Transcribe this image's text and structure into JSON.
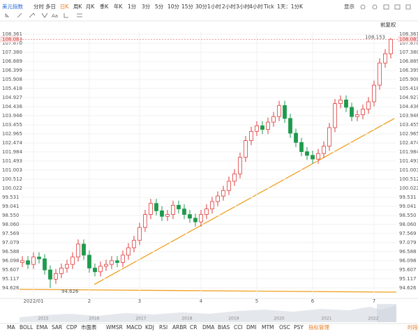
{
  "toolbar": {
    "symbol": "美元指数",
    "periods": [
      "分时",
      "多日",
      "日K",
      "周K",
      "月K",
      "季K",
      "年K",
      "1分",
      "3分",
      "5分",
      "10分",
      "15分",
      "30分",
      "1小时",
      "2小时",
      "3小时",
      "4小时",
      "Tick",
      "1天：1分K"
    ],
    "display": "显示",
    "adjust": "前复权"
  },
  "indicators": [
    "MA",
    "BOLL",
    "EMA",
    "SAR",
    "CDP",
    "市面表",
    "WMSR",
    "MACD",
    "KDJ",
    "RSI",
    "ARBR",
    "CR",
    "DMA",
    "BIAS",
    "CCI",
    "DMI",
    "MTM",
    "OSC",
    "PSY",
    "指标管理"
  ],
  "session": "时段",
  "navigator": {
    "years": [
      "2015",
      "2016",
      "2017",
      "2018",
      "2019",
      "2020",
      "2021",
      "2022"
    ]
  },
  "chart_data": {
    "type": "candlestick",
    "up_color": "#e03a3a",
    "down_color": "#1e9a4c",
    "grid": true,
    "categories": [
      null,
      null,
      "2022/01",
      null,
      null,
      null,
      null,
      null,
      null,
      null,
      null,
      null,
      "2",
      null,
      null,
      null,
      null,
      null,
      null,
      null,
      null,
      "3",
      null,
      null,
      null,
      null,
      null,
      null,
      null,
      null,
      null,
      null,
      "4",
      null,
      null,
      null,
      null,
      null,
      null,
      null,
      null,
      null,
      "5",
      null,
      null,
      null,
      null,
      null,
      null,
      null,
      null,
      null,
      "6",
      null,
      null,
      null,
      null,
      null,
      null,
      null,
      null,
      null,
      null,
      "7",
      null,
      null,
      null
    ],
    "open": [
      96.0,
      96.1,
      95.9,
      96.3,
      96.2,
      95.6,
      95.1,
      95.4,
      95.7,
      95.9,
      96.3,
      97.0,
      96.4,
      95.7,
      95.5,
      95.8,
      95.9,
      96.1,
      96.0,
      96.4,
      96.8,
      97.2,
      97.9,
      98.6,
      99.2,
      98.8,
      98.5,
      98.6,
      99.1,
      98.9,
      98.6,
      98.4,
      98.2,
      98.6,
      98.9,
      99.3,
      99.6,
      99.9,
      100.4,
      100.8,
      101.7,
      102.6,
      103.1,
      103.4,
      103.2,
      103.6,
      103.9,
      104.5,
      103.8,
      103.0,
      102.5,
      102.0,
      101.8,
      101.6,
      101.9,
      102.3,
      103.3,
      104.6,
      104.8,
      104.4,
      103.9,
      104.0,
      104.3,
      104.7,
      105.6,
      106.8,
      107.3
    ],
    "high": [
      96.35,
      96.35,
      96.55,
      96.55,
      96.45,
      95.85,
      95.65,
      95.95,
      96.15,
      96.55,
      97.25,
      97.25,
      96.65,
      95.95,
      96.05,
      96.15,
      96.35,
      96.35,
      96.65,
      97.05,
      97.45,
      98.15,
      98.85,
      99.45,
      99.45,
      99.05,
      98.85,
      99.35,
      99.35,
      99.15,
      98.85,
      98.65,
      98.85,
      99.15,
      99.55,
      99.85,
      100.15,
      100.65,
      101.05,
      101.95,
      102.85,
      103.35,
      103.65,
      103.65,
      103.85,
      104.15,
      104.75,
      104.75,
      104.05,
      103.25,
      102.75,
      102.25,
      102.05,
      102.15,
      102.55,
      103.55,
      104.85,
      105.05,
      105.05,
      104.65,
      104.25,
      104.55,
      104.95,
      105.85,
      107.05,
      107.55,
      108.153
    ],
    "low": [
      95.75,
      95.65,
      95.65,
      95.95,
      95.35,
      94.626,
      94.85,
      95.15,
      95.45,
      95.65,
      96.05,
      96.15,
      95.45,
      95.25,
      95.25,
      95.55,
      95.65,
      95.75,
      95.75,
      96.15,
      96.55,
      96.95,
      97.65,
      98.35,
      98.55,
      98.25,
      98.25,
      98.35,
      98.65,
      98.35,
      98.15,
      97.95,
      97.95,
      98.35,
      98.65,
      99.05,
      99.35,
      99.65,
      100.15,
      100.55,
      101.45,
      102.35,
      102.85,
      102.95,
      102.95,
      103.35,
      103.65,
      103.55,
      102.75,
      102.25,
      101.75,
      101.55,
      101.35,
      101.35,
      101.65,
      102.05,
      103.05,
      104.35,
      104.15,
      103.65,
      103.65,
      103.75,
      104.05,
      104.45,
      105.35,
      106.55,
      107.05
    ],
    "close": [
      96.1,
      95.9,
      96.3,
      96.2,
      95.6,
      95.1,
      95.4,
      95.7,
      95.9,
      96.3,
      97.0,
      96.4,
      95.7,
      95.5,
      95.8,
      95.9,
      96.1,
      96.0,
      96.4,
      96.8,
      97.2,
      97.9,
      98.6,
      99.2,
      98.8,
      98.5,
      98.6,
      99.1,
      98.9,
      98.6,
      98.4,
      98.2,
      98.6,
      98.9,
      99.3,
      99.6,
      99.9,
      100.4,
      100.8,
      101.7,
      102.6,
      103.1,
      103.4,
      103.2,
      103.6,
      103.9,
      104.5,
      103.8,
      103.0,
      102.5,
      102.0,
      101.8,
      101.6,
      101.9,
      102.3,
      103.3,
      104.6,
      104.8,
      104.4,
      103.9,
      104.0,
      104.3,
      104.7,
      105.6,
      106.8,
      107.3,
      108.083
    ],
    "ylim": [
      94.17,
      108.51
    ],
    "yticks": [
      94.626,
      95.117,
      95.607,
      96.098,
      96.588,
      97.079,
      97.569,
      {
        "value": 98.06,
        "label": "98.060"
      },
      {
        "value": 98.55,
        "label": "98.550"
      },
      99.041,
      99.531,
      100.022,
      100.512,
      101.003,
      101.493,
      101.984,
      102.474,
      102.965,
      103.455,
      103.946,
      104.436,
      104.927,
      105.418,
      105.908,
      106.399,
      106.889,
      {
        "value": 107.38,
        "label": "107.380"
      },
      {
        "value": 107.87,
        "label": "107.870"
      },
      108.361
    ]
  }
}
